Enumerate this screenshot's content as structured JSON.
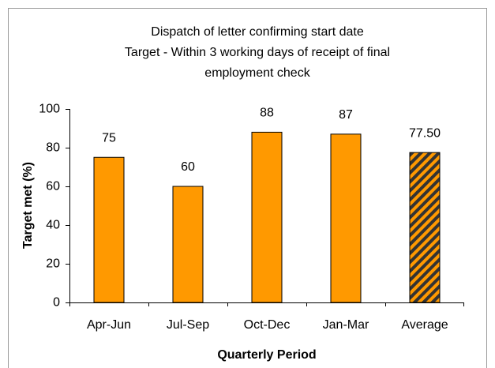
{
  "chart_data": {
    "type": "bar",
    "title": [
      "Dispatch of letter confirming start date",
      "Target - Within 3 working days of receipt of final",
      "employment check"
    ],
    "x_label": "Quarterly Period",
    "y_label": "Target met (%)",
    "categories": [
      "Apr-Jun",
      "Jul-Sep",
      "Oct-Dec",
      "Jan-Mar",
      "Average"
    ],
    "values": [
      75,
      60,
      88,
      87,
      77.5
    ],
    "value_labels": [
      "75",
      "60",
      "88",
      "87",
      "77.50"
    ],
    "color": "#ff9900",
    "hatch_color": "#333333",
    "hatched": [
      false,
      false,
      false,
      false,
      true
    ],
    "ylim": [
      0,
      100
    ],
    "yticks": [
      0,
      20,
      40,
      60,
      80,
      100
    ],
    "grid": false
  }
}
